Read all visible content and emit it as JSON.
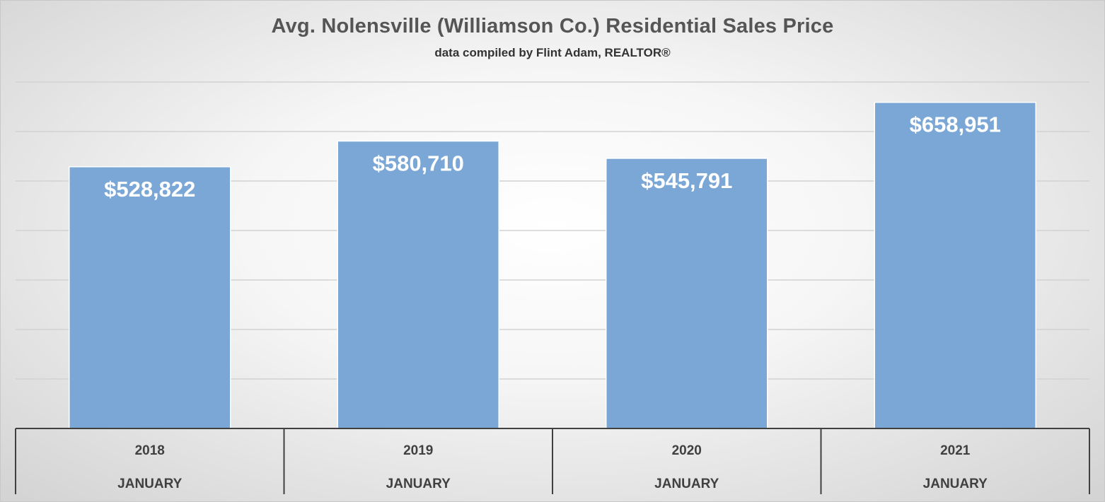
{
  "chart_data": {
    "type": "bar",
    "title": "Avg. Nolensville (Williamson Co.) Residential Sales Price",
    "subtitle": "data compiled by Flint Adam, REALTOR®",
    "categories": [
      "2018",
      "2019",
      "2020",
      "2021"
    ],
    "category_sublabels": [
      "JANUARY",
      "JANUARY",
      "JANUARY",
      "JANUARY"
    ],
    "values": [
      528822,
      580710,
      545791,
      658951
    ],
    "data_labels": [
      "$528,822",
      "$580,710",
      "$545,791",
      "$658,951"
    ],
    "ylim": [
      0,
      700000
    ],
    "grid": true,
    "bar_color": "#7AA7D6",
    "legend": "none"
  }
}
